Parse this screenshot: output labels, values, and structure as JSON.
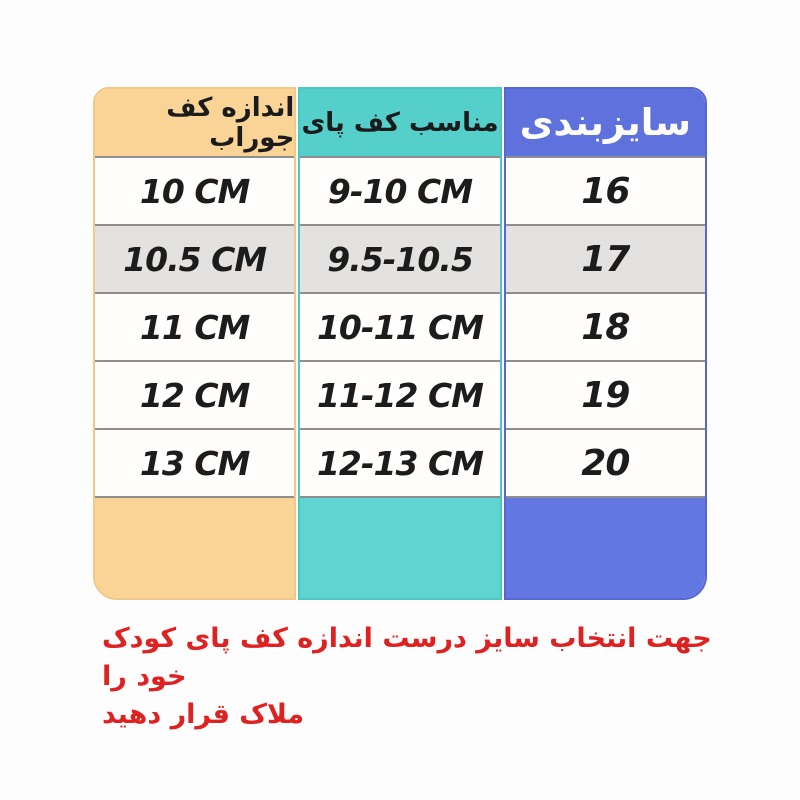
{
  "page": {
    "background": "#fdfdfd"
  },
  "table": {
    "columns": [
      {
        "id": "sock",
        "header": "اندازه کف جوراب",
        "color": "#fad397",
        "header_text_color": "#1b1b1b"
      },
      {
        "id": "foot",
        "header": "مناسب کف پای",
        "color": "#55cfc9",
        "header_text_color": "#1b1b1b"
      },
      {
        "id": "size",
        "header": "سایزبندی",
        "color": "#5e71dd",
        "header_text_color": "#ffffff"
      }
    ],
    "rows": [
      {
        "sock": "10 CM",
        "foot": "9-10 CM",
        "size": "16"
      },
      {
        "sock": "10.5 CM",
        "foot": "9.5-10.5",
        "size": "17"
      },
      {
        "sock": "11 CM",
        "foot": "10-11 CM",
        "size": "18"
      },
      {
        "sock": "12 CM",
        "foot": "11-12 CM",
        "size": "19"
      },
      {
        "sock": "13 CM",
        "foot": "12-13 CM",
        "size": "20"
      }
    ],
    "shaded_row_index": 1,
    "shaded_row_color": "#e3e2e0",
    "separator_color": "#8f8f8f"
  },
  "note": {
    "line1": "جهت انتخاب سایز درست اندازه کف پای کودک خود را",
    "line2": "ملاک قرار دهید",
    "color": "#de2121"
  },
  "chart_data": {
    "type": "table",
    "columns_rtl": [
      "سایزبندی",
      "مناسب کف پای",
      "اندازه کف جوراب"
    ],
    "rows_rtl": [
      [
        "16",
        "9-10 CM",
        "10 CM"
      ],
      [
        "17",
        "9.5-10.5",
        "10.5 CM"
      ],
      [
        "18",
        "10-11 CM",
        "11 CM"
      ],
      [
        "19",
        "11-12 CM",
        "12 CM"
      ],
      [
        "20",
        "12-13 CM",
        "13 CM"
      ]
    ],
    "annotations": [
      "جهت انتخاب سایز درست اندازه کف پای کودک خود را ملاک قرار دهید"
    ],
    "layout": {
      "direction": "rtl",
      "header_colors": [
        "#5e71dd",
        "#55cfc9",
        "#fad397"
      ],
      "shaded_row": "17"
    }
  }
}
